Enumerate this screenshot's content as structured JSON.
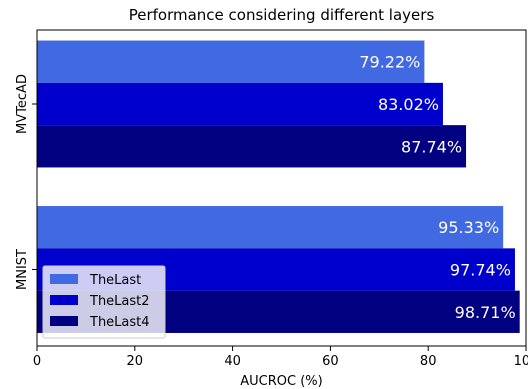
{
  "chart_data": {
    "type": "bar",
    "orientation": "horizontal",
    "title": "Performance considering different layers",
    "xlabel": "AUCROC (%)",
    "ylabel": "",
    "xlim": [
      0,
      100
    ],
    "xticks": [
      0,
      20,
      40,
      60,
      80,
      100
    ],
    "categories": [
      "MVTecAD",
      "MNIST"
    ],
    "series": [
      {
        "name": "TheLast",
        "values": [
          79.22,
          95.33
        ],
        "labels": [
          "79.22%",
          "95.33%"
        ],
        "color": "#4169e1"
      },
      {
        "name": "TheLast2",
        "values": [
          83.02,
          97.74
        ],
        "labels": [
          "83.02%",
          "97.74%"
        ],
        "color": "#0000cd"
      },
      {
        "name": "TheLast4",
        "values": [
          87.74,
          98.71
        ],
        "labels": [
          "87.74%",
          "98.71%"
        ],
        "color": "#000080"
      }
    ],
    "legend": "bottom-left",
    "grid": false
  }
}
